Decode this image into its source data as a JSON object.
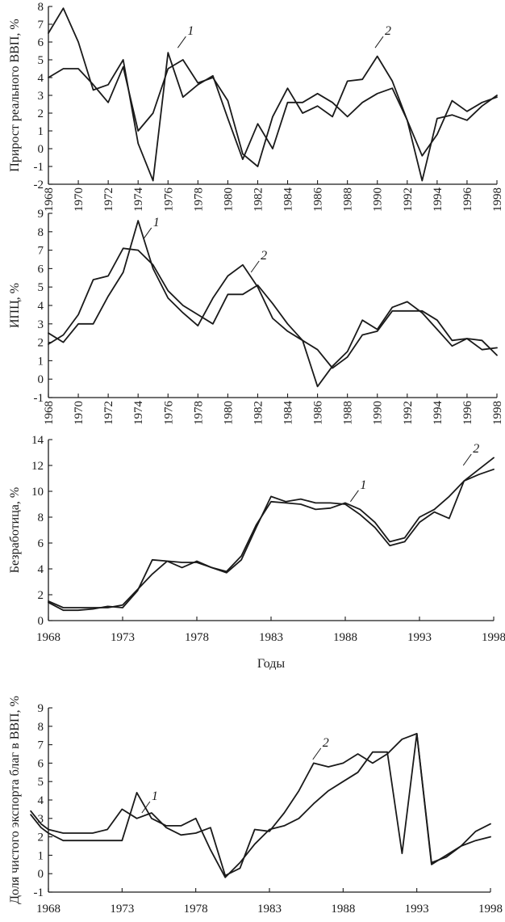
{
  "chart_data": [
    {
      "type": "line",
      "ylabel": "Прирост реального ВВП, %",
      "xlabel": "",
      "ylim": [
        -2,
        8
      ],
      "xlim": [
        1968,
        1998
      ],
      "yticks": [
        -2,
        -1,
        0,
        1,
        2,
        3,
        4,
        5,
        6,
        7,
        8
      ],
      "xticks": [
        1968,
        1970,
        1972,
        1974,
        1976,
        1978,
        1980,
        1982,
        1984,
        1986,
        1988,
        1990,
        1992,
        1994,
        1996,
        1998
      ],
      "xtick_labels": [
        "1968",
        "1970",
        "1972",
        "1974",
        "1976",
        "1978",
        "1980",
        "1982",
        "1984",
        "1986",
        "1988",
        "1990",
        "1992",
        "1994",
        "1996",
        "1998"
      ],
      "xtick_rotated": true,
      "series": [
        {
          "name": "1",
          "x": [
            1968,
            1969,
            1970,
            1971,
            1972,
            1973,
            1974,
            1975,
            1976,
            1977,
            1978,
            1979,
            1980,
            1981,
            1982,
            1983,
            1984,
            1985,
            1986,
            1987,
            1988,
            1989,
            1990,
            1991,
            1992,
            1993,
            1994,
            1995,
            1996,
            1997,
            1998
          ],
          "values": [
            4.0,
            4.5,
            4.5,
            3.6,
            2.6,
            4.6,
            1.0,
            2.0,
            4.5,
            5.0,
            3.7,
            4.0,
            2.7,
            -0.3,
            -1.0,
            1.8,
            3.4,
            2.0,
            2.4,
            1.8,
            3.8,
            3.9,
            5.2,
            3.8,
            1.6,
            -1.8,
            1.7,
            1.9,
            1.6,
            2.4,
            3.0
          ]
        },
        {
          "name": "2",
          "x": [
            1968,
            1969,
            1970,
            1971,
            1972,
            1973,
            1974,
            1975,
            1976,
            1977,
            1978,
            1979,
            1980,
            1981,
            1982,
            1983,
            1984,
            1985,
            1986,
            1987,
            1988,
            1989,
            1990,
            1991,
            1992,
            1993,
            1994,
            1995,
            1996,
            1997,
            1998
          ],
          "values": [
            6.5,
            7.9,
            6.0,
            3.3,
            3.6,
            5.0,
            0.3,
            -1.8,
            5.4,
            2.9,
            3.6,
            4.1,
            1.7,
            -0.6,
            1.4,
            0.0,
            2.6,
            2.6,
            3.1,
            2.6,
            1.8,
            2.6,
            3.1,
            3.4,
            1.6,
            -0.4,
            0.8,
            2.7,
            2.1,
            2.6,
            2.9
          ]
        }
      ],
      "labels": [
        {
          "text": "1",
          "x": 1977.3,
          "y": 6.4
        },
        {
          "text": "2",
          "x": 1990.5,
          "y": 6.4
        }
      ]
    },
    {
      "type": "line",
      "ylabel": "ИПЦ, %",
      "xlabel": "",
      "ylim": [
        -1,
        9
      ],
      "xlim": [
        1968,
        1998
      ],
      "yticks": [
        -1,
        0,
        1,
        2,
        3,
        4,
        5,
        6,
        7,
        8,
        9
      ],
      "xticks": [
        1968,
        1970,
        1972,
        1974,
        1976,
        1978,
        1980,
        1982,
        1984,
        1986,
        1988,
        1990,
        1992,
        1994,
        1996,
        1998
      ],
      "xtick_labels": [
        "1968",
        "1970",
        "1972",
        "1974",
        "1976",
        "1978",
        "1980",
        "1982",
        "1984",
        "1986",
        "1988",
        "1990",
        "1992",
        "1994",
        "1996",
        "1998"
      ],
      "xtick_rotated": true,
      "series": [
        {
          "name": "1",
          "x": [
            1968,
            1969,
            1970,
            1971,
            1972,
            1973,
            1974,
            1975,
            1976,
            1977,
            1978,
            1979,
            1980,
            1981,
            1982,
            1983,
            1984,
            1985,
            1986,
            1987,
            1988,
            1989,
            1990,
            1991,
            1992,
            1993,
            1994,
            1995,
            1996,
            1997,
            1998
          ],
          "values": [
            2.5,
            2.0,
            3.0,
            3.0,
            4.5,
            5.8,
            8.6,
            6.0,
            4.4,
            3.6,
            2.9,
            4.4,
            5.6,
            6.2,
            5.0,
            3.3,
            2.6,
            2.1,
            1.6,
            0.6,
            1.2,
            2.4,
            2.6,
            3.7,
            3.7,
            3.7,
            3.2,
            2.1,
            2.2,
            2.1,
            1.3
          ]
        },
        {
          "name": "2",
          "x": [
            1968,
            1969,
            1970,
            1971,
            1972,
            1973,
            1974,
            1975,
            1976,
            1977,
            1978,
            1979,
            1980,
            1981,
            1982,
            1983,
            1984,
            1985,
            1986,
            1987,
            1988,
            1989,
            1990,
            1991,
            1992,
            1993,
            1994,
            1995,
            1996,
            1997,
            1998
          ],
          "values": [
            1.9,
            2.4,
            3.5,
            5.4,
            5.6,
            7.1,
            7.0,
            6.2,
            4.8,
            4.0,
            3.5,
            3.0,
            4.6,
            4.6,
            5.1,
            4.1,
            3.0,
            2.1,
            -0.4,
            0.7,
            1.5,
            3.2,
            2.7,
            3.9,
            4.2,
            3.6,
            2.7,
            1.8,
            2.2,
            1.6,
            1.7
          ]
        }
      ],
      "labels": [
        {
          "text": "1",
          "x": 1975.0,
          "y": 8.3
        },
        {
          "text": "2",
          "x": 1982.2,
          "y": 6.5
        }
      ]
    },
    {
      "type": "line",
      "ylabel": "Безработица, %",
      "xlabel": "Годы",
      "ylim": [
        0,
        14
      ],
      "xlim": [
        1968,
        1998
      ],
      "yticks": [
        0,
        2,
        4,
        6,
        8,
        10,
        12,
        14
      ],
      "xticks": [
        1968,
        1973,
        1978,
        1983,
        1988,
        1993,
        1998
      ],
      "xtick_labels": [
        "1968",
        "1973",
        "1978",
        "1983",
        "1988",
        "1993",
        "1998"
      ],
      "xtick_rotated": false,
      "series": [
        {
          "name": "1",
          "x": [
            1968,
            1969,
            1970,
            1971,
            1972,
            1973,
            1974,
            1975,
            1976,
            1977,
            1978,
            1979,
            1980,
            1981,
            1982,
            1983,
            1984,
            1985,
            1986,
            1987,
            1988,
            1989,
            1990,
            1991,
            1992,
            1993,
            1994,
            1995,
            1996,
            1997,
            1998
          ],
          "values": [
            1.5,
            1.0,
            1.0,
            1.0,
            1.0,
            1.2,
            2.4,
            3.6,
            4.6,
            4.5,
            4.5,
            4.1,
            3.8,
            5.0,
            7.4,
            9.2,
            9.1,
            9.0,
            8.6,
            8.7,
            9.1,
            8.6,
            7.6,
            6.1,
            6.4,
            8.0,
            8.6,
            9.6,
            10.8,
            11.3,
            11.7
          ]
        },
        {
          "name": "2",
          "x": [
            1968,
            1969,
            1970,
            1971,
            1972,
            1973,
            1974,
            1975,
            1976,
            1977,
            1978,
            1979,
            1980,
            1981,
            1982,
            1983,
            1984,
            1985,
            1986,
            1987,
            1988,
            1989,
            1990,
            1991,
            1992,
            1993,
            1994,
            1995,
            1996,
            1997,
            1998
          ],
          "values": [
            1.4,
            0.8,
            0.8,
            0.9,
            1.1,
            1.0,
            2.3,
            4.7,
            4.6,
            4.1,
            4.6,
            4.1,
            3.7,
            4.7,
            7.2,
            9.6,
            9.2,
            9.4,
            9.1,
            9.1,
            9.0,
            8.2,
            7.2,
            5.8,
            6.1,
            7.6,
            8.4,
            7.9,
            10.8,
            11.7,
            12.6
          ]
        }
      ],
      "labels": [
        {
          "text": "1",
          "x": 1989.0,
          "y": 10.2
        },
        {
          "text": "2",
          "x": 1996.6,
          "y": 13.0
        }
      ]
    },
    {
      "type": "line",
      "ylabel": "Доля чистого экспорта благ в ВВП, %",
      "xlabel": "Годы",
      "ylim": [
        -1,
        9
      ],
      "xlim": [
        1968,
        1998
      ],
      "yticks": [
        -1,
        0,
        1,
        2,
        3,
        4,
        5,
        6,
        7,
        8,
        9
      ],
      "xticks": [
        1968,
        1973,
        1978,
        1983,
        1988,
        1993,
        1998
      ],
      "xtick_labels": [
        "1968",
        "1973",
        "1978",
        "1983",
        "1988",
        "1993",
        "1998"
      ],
      "xtick_rotated": false,
      "series": [
        {
          "name": "1",
          "x": [
            1966.8,
            1967.5,
            1968,
            1969,
            1970,
            1971,
            1972,
            1973,
            1974,
            1975,
            1976,
            1977,
            1978,
            1979,
            1980,
            1981,
            1982,
            1983,
            1984,
            1985,
            1986,
            1987,
            1988,
            1989,
            1990,
            1991,
            1992,
            1993,
            1994,
            1995,
            1996,
            1997,
            1998
          ],
          "values": [
            3.2,
            2.5,
            2.2,
            1.8,
            1.8,
            1.8,
            1.8,
            1.8,
            4.4,
            3.0,
            2.6,
            2.6,
            3.0,
            1.3,
            -0.2,
            0.6,
            1.6,
            2.4,
            2.6,
            3.0,
            3.8,
            4.5,
            5.0,
            5.5,
            6.6,
            6.6,
            1.1,
            7.6,
            0.5,
            1.0,
            1.5,
            2.3,
            2.7
          ]
        },
        {
          "name": "2",
          "x": [
            1966.8,
            1967.5,
            1968,
            1969,
            1970,
            1971,
            1972,
            1973,
            1974,
            1975,
            1976,
            1977,
            1978,
            1979,
            1980,
            1981,
            1982,
            1983,
            1984,
            1985,
            1986,
            1987,
            1988,
            1989,
            1990,
            1991,
            1992,
            1993,
            1994,
            1995,
            1996,
            1997,
            1998
          ],
          "values": [
            3.4,
            2.7,
            2.4,
            2.2,
            2.2,
            2.2,
            2.4,
            3.5,
            3.0,
            3.3,
            2.5,
            2.1,
            2.2,
            2.5,
            -0.1,
            0.3,
            2.4,
            2.3,
            3.3,
            4.5,
            6.0,
            5.8,
            6.0,
            6.5,
            6.0,
            6.5,
            7.3,
            7.6,
            0.6,
            0.9,
            1.5,
            1.8,
            2.0
          ]
        }
      ],
      "labels": [
        {
          "text": "1",
          "x": 1975.0,
          "y": 4.0
        },
        {
          "text": "2",
          "x": 1986.6,
          "y": 6.9
        }
      ]
    }
  ]
}
